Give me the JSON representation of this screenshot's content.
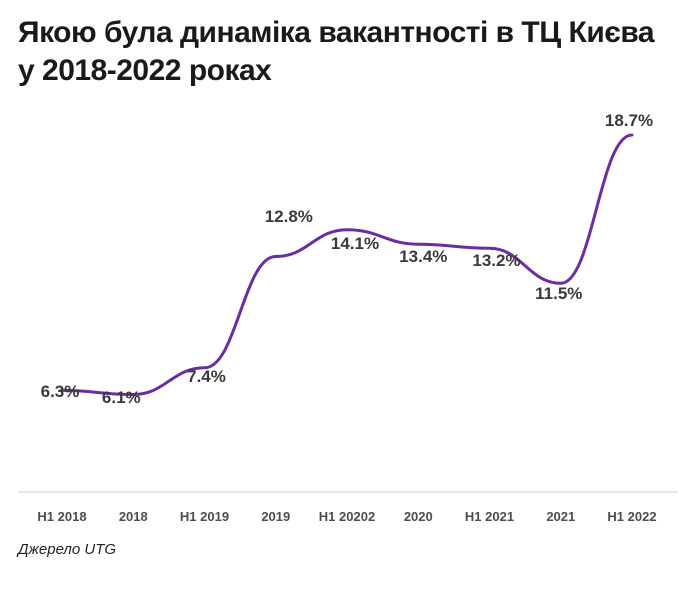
{
  "header": {
    "title_line1": "Якою була динаміка вакантності в ТЦ Києва",
    "title_line2": "у 2018-2022 роках"
  },
  "footer": {
    "source": "Джерело UTG"
  },
  "chart_data": {
    "type": "line",
    "categories": [
      "H1 2018",
      "2018",
      "H1 2019",
      "2019",
      "H1 20202",
      "2020",
      "H1 2021",
      "2021",
      "H1 2022"
    ],
    "series": [
      {
        "values": [
          6.3,
          6.1,
          7.4,
          12.8,
          14.1,
          13.4,
          13.2,
          11.5,
          18.7
        ]
      }
    ],
    "data_labels": [
      "6.3%",
      "6.1%",
      "7.4%",
      "12.8%",
      "14.1%",
      "13.4%",
      "13.2%",
      "11.5%",
      "18.7%"
    ],
    "line_color": "#6a2ea0",
    "axis_color": "#cccccc",
    "grid": false,
    "legend": "none"
  }
}
